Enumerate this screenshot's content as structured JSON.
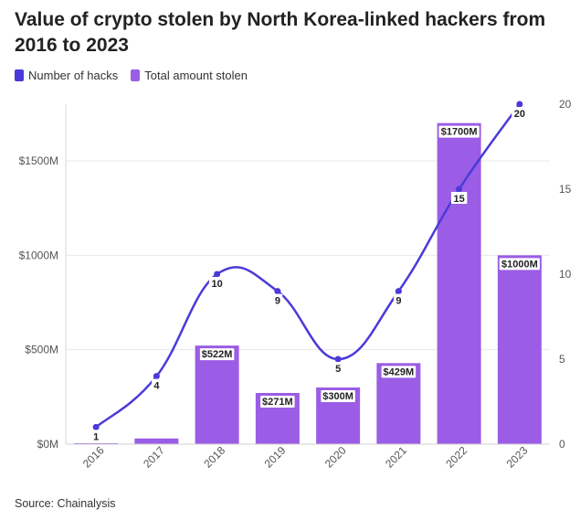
{
  "title": "Value of crypto stolen by North Korea-linked hackers from 2016 to 2023",
  "source": "Source: Chainalysis",
  "colors": {
    "line": "#4a3ad9",
    "bar": "#9b5de5"
  },
  "legend": [
    {
      "label": "Number of hacks",
      "color": "#4a3ad9"
    },
    {
      "label": "Total amount stolen",
      "color": "#9b5de5"
    }
  ],
  "chart_data": {
    "type": "bar+line",
    "title": "Value of crypto stolen by North Korea-linked hackers from 2016 to 2023",
    "categories": [
      "2016",
      "2017",
      "2018",
      "2019",
      "2020",
      "2021",
      "2022",
      "2023"
    ],
    "series": [
      {
        "name": "Total amount stolen",
        "type": "bar",
        "axis": "left",
        "values": [
          5,
          30,
          522,
          271,
          300,
          429,
          1700,
          1000
        ],
        "labels": [
          "",
          "",
          "$522M",
          "$271M",
          "$300M",
          "$429M",
          "$1700M",
          "$1000M"
        ]
      },
      {
        "name": "Number of hacks",
        "type": "line",
        "axis": "right",
        "values": [
          1,
          4,
          10,
          9,
          5,
          9,
          15,
          20
        ],
        "labels": [
          "1",
          "4",
          "10",
          "9",
          "5",
          "9",
          "15",
          "20"
        ]
      }
    ],
    "y_left": {
      "range": [
        0,
        1800
      ],
      "ticks": [
        0,
        500,
        1000,
        1500
      ],
      "tick_labels": [
        "$0M",
        "$500M",
        "$1000M",
        "$1500M"
      ]
    },
    "y_right": {
      "range": [
        0,
        20
      ],
      "ticks": [
        0,
        5,
        10,
        15,
        20
      ],
      "tick_labels": [
        "0",
        "5",
        "10",
        "15",
        "20"
      ]
    }
  }
}
